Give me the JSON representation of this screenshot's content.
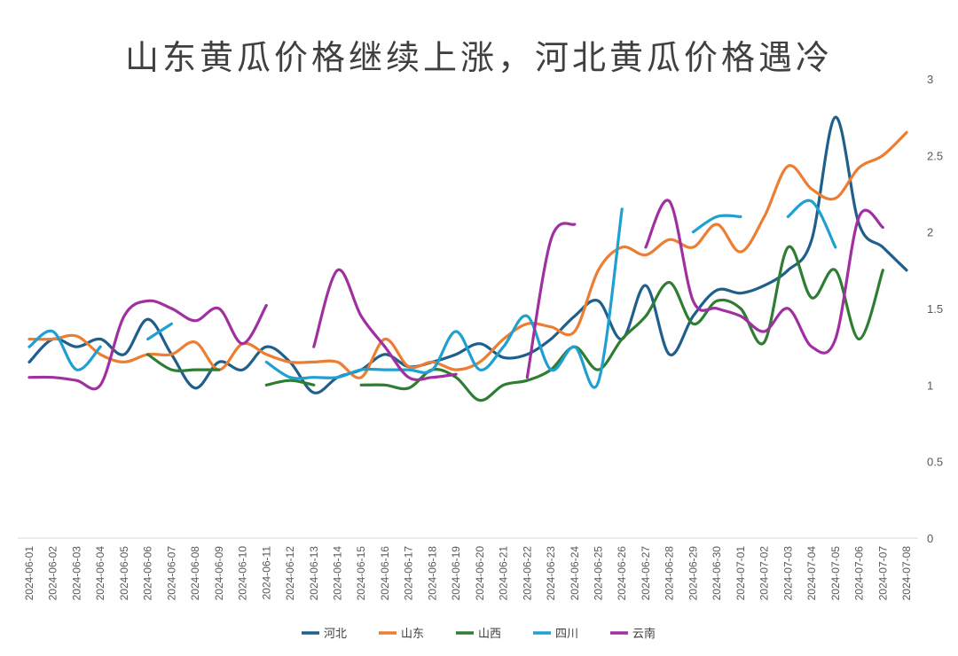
{
  "chart_data": {
    "type": "line",
    "title": "山东黄瓜价格继续上涨，河北黄瓜价格遇冷",
    "xlabel": "",
    "ylabel": "",
    "ylim": [
      0,
      3
    ],
    "y_ticks": [
      "0",
      "0.5",
      "1",
      "1.5",
      "2",
      "2.5",
      "3"
    ],
    "y_axis_side": "right",
    "grid": false,
    "legend_position": "bottom",
    "categories": [
      "2024-06-01",
      "2024-06-02",
      "2024-06-03",
      "2024-06-04",
      "2024-06-05",
      "2024-06-06",
      "2024-06-07",
      "2024-06-08",
      "2024-06-09",
      "2024-06-10",
      "2024-06-11",
      "2024-06-12",
      "2024-06-13",
      "2024-06-14",
      "2024-06-15",
      "2024-06-16",
      "2024-06-17",
      "2024-06-18",
      "2024-06-19",
      "2024-06-20",
      "2024-06-21",
      "2024-06-22",
      "2024-06-23",
      "2024-06-24",
      "2024-06-25",
      "2024-06-26",
      "2024-06-27",
      "2024-06-28",
      "2024-06-29",
      "2024-06-30",
      "2024-07-01",
      "2024-07-02",
      "2024-07-03",
      "2024-07-04",
      "2024-07-05",
      "2024-07-06",
      "2024-07-07",
      "2024-07-08"
    ],
    "series": [
      {
        "name": "河北",
        "color": "#1f5f8b",
        "values": [
          1.15,
          1.3,
          1.25,
          1.3,
          1.2,
          1.43,
          1.2,
          0.98,
          1.15,
          1.1,
          1.25,
          1.15,
          0.95,
          1.05,
          1.1,
          1.2,
          1.12,
          1.15,
          1.2,
          1.27,
          1.18,
          1.2,
          1.3,
          1.45,
          1.55,
          1.3,
          1.65,
          1.2,
          1.45,
          1.62,
          1.6,
          1.65,
          1.75,
          1.95,
          2.75,
          2.05,
          1.9,
          1.75
        ]
      },
      {
        "name": "山东",
        "color": "#ed7d31",
        "values": [
          1.3,
          1.3,
          1.32,
          1.2,
          1.15,
          1.2,
          1.2,
          1.28,
          1.1,
          1.27,
          1.2,
          1.15,
          1.15,
          1.15,
          1.05,
          1.3,
          1.12,
          1.15,
          1.1,
          1.15,
          1.3,
          1.4,
          1.38,
          1.35,
          1.75,
          1.9,
          1.85,
          1.95,
          1.9,
          2.05,
          1.87,
          2.1,
          2.43,
          2.28,
          2.22,
          2.42,
          2.5,
          2.65
        ]
      },
      {
        "name": "山西",
        "color": "#2e7d32",
        "values": [
          null,
          null,
          null,
          null,
          null,
          1.2,
          1.1,
          1.1,
          1.1,
          null,
          1.0,
          1.03,
          1.0,
          null,
          1.0,
          1.0,
          0.98,
          1.1,
          1.05,
          0.9,
          1.0,
          1.03,
          1.1,
          1.25,
          1.1,
          1.3,
          1.45,
          1.67,
          1.4,
          1.55,
          1.5,
          1.28,
          1.9,
          1.57,
          1.75,
          1.3,
          1.75,
          null
        ]
      },
      {
        "name": "四川",
        "color": "#1ea0d0",
        "values": [
          1.25,
          1.35,
          1.1,
          1.25,
          null,
          1.3,
          1.4,
          null,
          null,
          null,
          1.15,
          1.05,
          1.05,
          1.05,
          1.1,
          1.1,
          1.1,
          1.1,
          1.35,
          1.1,
          1.25,
          1.45,
          1.1,
          1.25,
          1.02,
          2.15,
          null,
          null,
          2.0,
          2.1,
          2.1,
          null,
          2.1,
          2.2,
          1.9,
          null,
          null,
          null
        ]
      },
      {
        "name": "云南",
        "color": "#a030a0",
        "values": [
          1.05,
          1.05,
          1.03,
          1.0,
          1.45,
          1.55,
          1.5,
          1.42,
          1.5,
          1.27,
          1.52,
          null,
          1.25,
          1.75,
          1.45,
          1.25,
          1.05,
          1.05,
          1.07,
          null,
          null,
          1.05,
          1.95,
          2.05,
          null,
          null,
          1.9,
          2.2,
          1.55,
          1.5,
          1.45,
          1.35,
          1.5,
          1.25,
          1.3,
          2.1,
          2.03,
          null
        ]
      }
    ]
  }
}
